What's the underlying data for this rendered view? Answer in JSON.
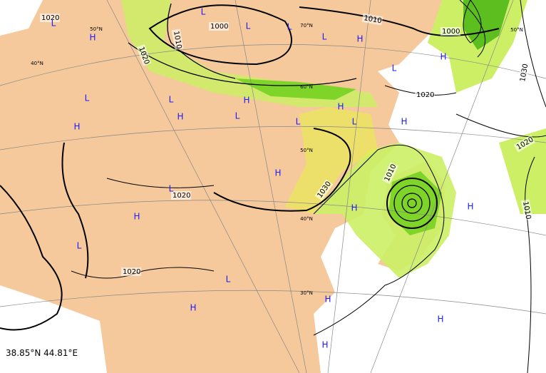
{
  "isobar_labels": [
    "1020",
    "1010",
    "1000",
    "1020",
    "1010",
    "1000",
    "1020",
    "1030",
    "1020",
    "1010",
    "1030",
    "1020",
    "1020",
    "1010"
  ],
  "pressure_centers": [
    "L",
    "L",
    "L",
    "H",
    "L",
    "L",
    "H",
    "L",
    "H",
    "L",
    "L",
    "H",
    "H",
    "L",
    "H",
    "L",
    "L",
    "H",
    "H",
    "H",
    "L",
    "H",
    "H",
    "H",
    "L",
    "L",
    "H",
    "H",
    "H",
    "H"
  ],
  "latitude_labels": [
    "50°N",
    "40°N",
    "70°N",
    "60°N",
    "50°N",
    "40°N",
    "30°N",
    "50°N"
  ],
  "coordinates": "38.85°N 44.81°E"
}
